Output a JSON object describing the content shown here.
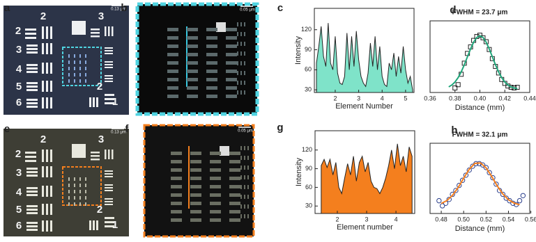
{
  "panel_labels": [
    "a",
    "b",
    "c",
    "d",
    "e",
    "f",
    "g",
    "h"
  ],
  "target_labels": [
    "2",
    "3",
    "2",
    "3",
    "4",
    "5",
    "6",
    "2",
    "1"
  ],
  "scale_bars": [
    "0.13 μm",
    "0.05 μm",
    "0.13 μm",
    "0.05 μm"
  ],
  "chart_data": [
    {
      "type": "area",
      "color": "#7fe3c9",
      "ylabel": "Intensity",
      "xlabel": "Element Number",
      "xlim": [
        1.11,
        5.36
      ],
      "ylim": [
        26,
        152
      ],
      "xticks": [
        2,
        3,
        4,
        5
      ],
      "yticks": [
        30,
        60,
        90,
        120
      ],
      "x": [
        1.2,
        1.3,
        1.4,
        1.5,
        1.6,
        1.7,
        1.8,
        1.9,
        2.0,
        2.1,
        2.2,
        2.3,
        2.4,
        2.5,
        2.6,
        2.7,
        2.8,
        2.9,
        3.0,
        3.1,
        3.2,
        3.3,
        3.4,
        3.5,
        3.6,
        3.7,
        3.8,
        3.9,
        4.0,
        4.1,
        4.2,
        4.3,
        4.4,
        4.5,
        4.6,
        4.7,
        4.8,
        4.9,
        5.0,
        5.1,
        5.2,
        5.3
      ],
      "values": [
        70,
        95,
        125,
        80,
        65,
        130,
        70,
        60,
        110,
        55,
        40,
        38,
        50,
        115,
        60,
        110,
        65,
        118,
        75,
        50,
        40,
        35,
        55,
        100,
        65,
        110,
        60,
        95,
        50,
        38,
        35,
        70,
        60,
        85,
        50,
        80,
        55,
        95,
        60,
        40,
        50,
        30
      ]
    },
    {
      "type": "scatter",
      "title": "FWHM = 23.7 μm",
      "xlabel": "Distance (mm)",
      "xlim": [
        0.36,
        0.44
      ],
      "ylim": [
        0,
        1.1
      ],
      "xticks": [
        0.36,
        0.38,
        {
          "value": 0.4,
          "label": "0.40"
        },
        0.42,
        0.44
      ],
      "series": [
        {
          "marker": "square",
          "color": "#222222",
          "x": [
            0.38,
            0.3825,
            0.385,
            0.3875,
            0.39,
            0.3925,
            0.395,
            0.3975,
            0.4,
            0.4025,
            0.405,
            0.4075,
            0.41,
            0.4125,
            0.415,
            0.4175,
            0.42,
            0.4225,
            0.425,
            0.4275,
            0.43
          ],
          "values": [
            0.07,
            0.12,
            0.28,
            0.45,
            0.6,
            0.7,
            0.8,
            0.86,
            0.88,
            0.84,
            0.78,
            0.66,
            0.52,
            0.4,
            0.3,
            0.2,
            0.14,
            0.1,
            0.08,
            0.07,
            0.08
          ]
        },
        {
          "marker": "line",
          "color": "#1fa67a",
          "x": [
            0.375,
            0.3775,
            0.38,
            0.3825,
            0.385,
            0.3875,
            0.39,
            0.3925,
            0.395,
            0.3975,
            0.4,
            0.4025,
            0.405,
            0.4075,
            0.41,
            0.4125,
            0.415,
            0.4175,
            0.42,
            0.4225,
            0.425,
            0.4275,
            0.43
          ],
          "values": [
            0.086,
            0.115,
            0.161,
            0.227,
            0.316,
            0.426,
            0.548,
            0.669,
            0.773,
            0.845,
            0.87,
            0.845,
            0.773,
            0.669,
            0.548,
            0.426,
            0.316,
            0.227,
            0.161,
            0.115,
            0.086,
            0.069,
            0.059
          ]
        }
      ]
    },
    {
      "type": "area",
      "color": "#f47f1e",
      "ylabel": "Intensity",
      "xlabel": "Element number",
      "xlim": [
        1.24,
        4.64
      ],
      "ylim": [
        18,
        151
      ],
      "xticks": [
        2,
        3,
        4
      ],
      "yticks": [
        30,
        60,
        90,
        120
      ],
      "x": [
        1.45,
        1.55,
        1.65,
        1.75,
        1.85,
        1.95,
        2.05,
        2.15,
        2.25,
        2.35,
        2.45,
        2.55,
        2.65,
        2.75,
        2.85,
        2.95,
        3.05,
        3.15,
        3.25,
        3.35,
        3.45,
        3.55,
        3.65,
        3.75,
        3.85,
        3.95,
        4.05,
        4.15,
        4.25,
        4.35,
        4.45,
        4.55
      ],
      "values": [
        95,
        105,
        92,
        105,
        80,
        100,
        60,
        50,
        75,
        98,
        80,
        110,
        70,
        100,
        110,
        85,
        100,
        70,
        60,
        58,
        50,
        60,
        75,
        95,
        120,
        90,
        130,
        95,
        110,
        85,
        125,
        110
      ]
    },
    {
      "type": "scatter",
      "title": "FWHM = 32.1 μm",
      "xlabel": "Distance (mm)",
      "xlim": [
        0.47,
        0.559
      ],
      "ylim": [
        0,
        1.1
      ],
      "xticks": [
        0.48,
        {
          "value": 0.5,
          "label": "0.50"
        },
        0.52,
        0.54,
        0.56
      ],
      "series": [
        {
          "marker": "circle",
          "color": "#2b3f8c",
          "x": [
            0.478,
            0.481,
            0.484,
            0.487,
            0.49,
            0.493,
            0.496,
            0.499,
            0.502,
            0.505,
            0.508,
            0.511,
            0.514,
            0.517,
            0.52,
            0.523,
            0.526,
            0.529,
            0.532,
            0.535,
            0.538,
            0.541,
            0.544,
            0.547,
            0.55,
            0.553
          ],
          "values": [
            0.2,
            0.12,
            0.16,
            0.22,
            0.3,
            0.36,
            0.44,
            0.52,
            0.6,
            0.68,
            0.74,
            0.78,
            0.78,
            0.76,
            0.72,
            0.64,
            0.56,
            0.46,
            0.36,
            0.3,
            0.24,
            0.2,
            0.16,
            0.14,
            0.2,
            0.28
          ]
        },
        {
          "marker": "line",
          "color": "#f47f1e",
          "x": [
            0.48,
            0.485,
            0.49,
            0.495,
            0.5,
            0.505,
            0.51,
            0.515,
            0.52,
            0.525,
            0.53,
            0.535,
            0.54,
            0.545,
            0.55
          ],
          "values": [
            0.156,
            0.202,
            0.284,
            0.404,
            0.552,
            0.693,
            0.784,
            0.792,
            0.716,
            0.582,
            0.432,
            0.305,
            0.216,
            0.163,
            0.137
          ]
        }
      ]
    }
  ]
}
